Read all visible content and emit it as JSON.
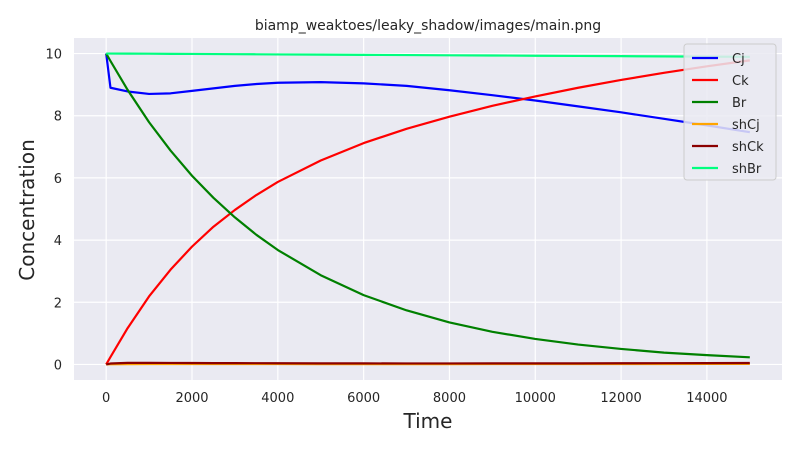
{
  "chart_data": {
    "type": "line",
    "title": "biamp_weaktoes/leaky_shadow/images/main.png",
    "xlabel": "Time",
    "ylabel": "Concentration",
    "xlim": [
      -750,
      15750
    ],
    "ylim": [
      -0.5,
      10.5
    ],
    "xticks": [
      0,
      2000,
      4000,
      6000,
      8000,
      10000,
      12000,
      14000
    ],
    "yticks": [
      0,
      2,
      4,
      6,
      8,
      10
    ],
    "grid": true,
    "legend_position": "top-right",
    "background": "#EAEAF2",
    "x": [
      0,
      100,
      500,
      1000,
      1500,
      2000,
      2500,
      3000,
      3500,
      4000,
      5000,
      6000,
      7000,
      8000,
      9000,
      10000,
      11000,
      12000,
      13000,
      14000,
      15000
    ],
    "series": [
      {
        "name": "Cj",
        "color": "#0000FF",
        "values": [
          10.0,
          8.9,
          8.78,
          8.7,
          8.72,
          8.8,
          8.88,
          8.96,
          9.02,
          9.06,
          9.08,
          9.04,
          8.96,
          8.82,
          8.66,
          8.49,
          8.3,
          8.11,
          7.9,
          7.69,
          7.47
        ]
      },
      {
        "name": "Ck",
        "color": "#FF0000",
        "values": [
          0.0,
          0.24,
          1.17,
          2.19,
          3.05,
          3.79,
          4.43,
          4.97,
          5.45,
          5.87,
          6.56,
          7.12,
          7.58,
          7.97,
          8.32,
          8.62,
          8.9,
          9.15,
          9.38,
          9.59,
          9.78
        ]
      },
      {
        "name": "Br",
        "color": "#008000",
        "values": [
          10.0,
          9.76,
          8.83,
          7.79,
          6.88,
          6.07,
          5.36,
          4.73,
          4.17,
          3.68,
          2.87,
          2.23,
          1.74,
          1.35,
          1.05,
          0.82,
          0.64,
          0.5,
          0.38,
          0.3,
          0.23
        ]
      },
      {
        "name": "shCj",
        "color": "#FFA500",
        "values": [
          0.0,
          0.005,
          0.01,
          0.012,
          0.013,
          0.013,
          0.013,
          0.012,
          0.012,
          0.012,
          0.011,
          0.011,
          0.011,
          0.011,
          0.012,
          0.012,
          0.013,
          0.014,
          0.015,
          0.016,
          0.017
        ]
      },
      {
        "name": "shCk",
        "color": "#8B0000",
        "values": [
          0.0,
          0.03,
          0.05,
          0.05,
          0.048,
          0.046,
          0.044,
          0.042,
          0.04,
          0.038,
          0.036,
          0.034,
          0.033,
          0.033,
          0.034,
          0.035,
          0.036,
          0.038,
          0.04,
          0.043,
          0.046
        ]
      },
      {
        "name": "shBr",
        "color": "#00FF7F",
        "values": [
          10.0,
          10.0,
          9.998,
          9.995,
          9.99,
          9.987,
          9.983,
          9.98,
          9.976,
          9.972,
          9.965,
          9.958,
          9.951,
          9.944,
          9.937,
          9.93,
          9.923,
          9.916,
          9.909,
          9.902,
          9.895
        ]
      }
    ]
  }
}
